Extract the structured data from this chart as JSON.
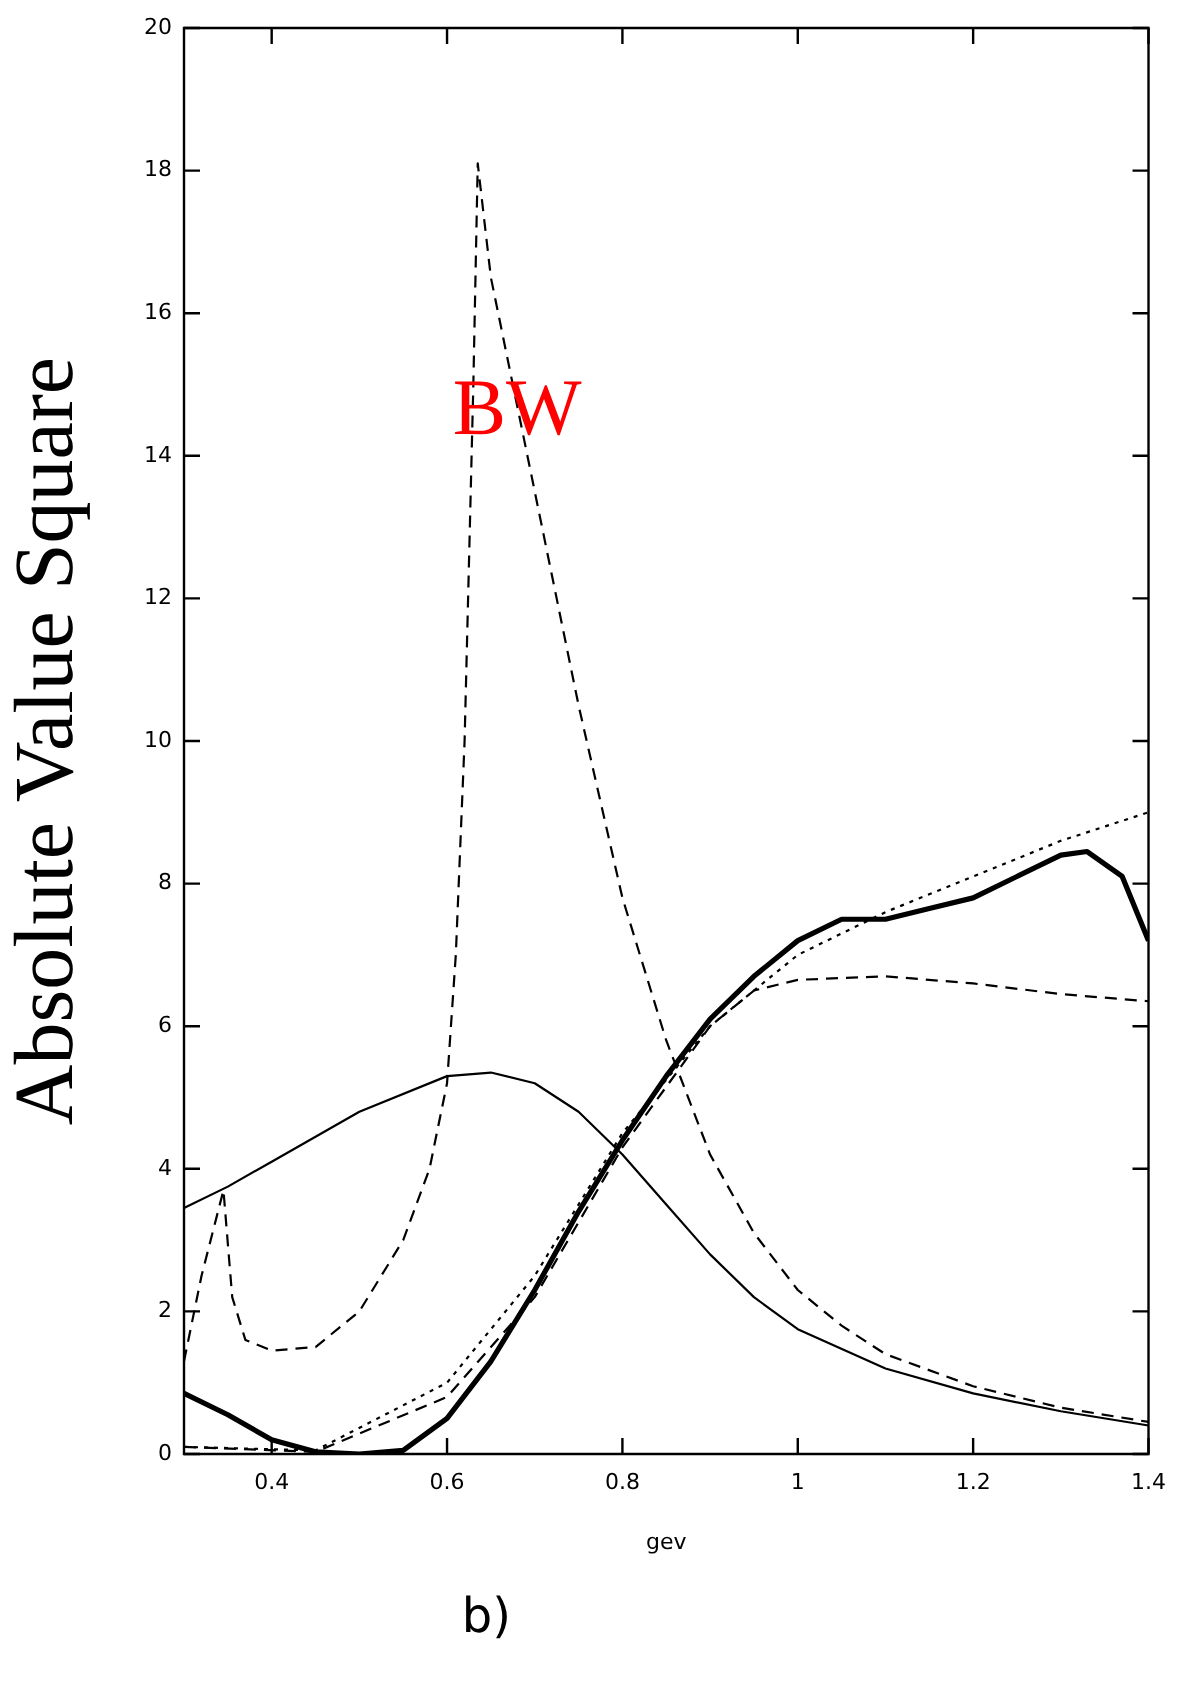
{
  "chart_data": {
    "type": "line",
    "xlabel": "gev",
    "ylabel": "Absolute Value Square",
    "xlim": [
      0.3,
      1.4
    ],
    "xticks": [
      0.4,
      0.6,
      0.8,
      1,
      1.2,
      1.4
    ],
    "ylim": [
      0,
      20
    ],
    "yticks": [
      0,
      2,
      4,
      6,
      8,
      10,
      12,
      14,
      16,
      18,
      20
    ],
    "grid": false,
    "legend": false,
    "marker": "none",
    "series": [
      {
        "color": "#000000",
        "line_style": "dashed",
        "x": [
          0.3,
          0.32,
          0.345,
          0.355,
          0.37,
          0.4,
          0.45,
          0.5,
          0.55,
          0.58,
          0.6,
          0.61,
          0.62,
          0.63,
          0.635,
          0.65,
          0.7,
          0.75,
          0.8,
          0.85,
          0.9,
          0.95,
          1.0,
          1.05,
          1.1,
          1.2,
          1.3,
          1.4
        ],
        "values": [
          1.3,
          2.5,
          3.7,
          2.2,
          1.6,
          1.45,
          1.5,
          2.0,
          3.0,
          4.0,
          5.2,
          7,
          10,
          15,
          18.1,
          16.5,
          13.5,
          10.5,
          7.8,
          5.8,
          4.2,
          3.1,
          2.3,
          1.8,
          1.4,
          0.95,
          0.65,
          0.45
        ]
      },
      {
        "color": "#000000",
        "line_style": "solid",
        "x": [
          0.3,
          0.35,
          0.4,
          0.5,
          0.6,
          0.65,
          0.7,
          0.75,
          0.8,
          0.85,
          0.9,
          0.95,
          1.0,
          1.1,
          1.2,
          1.3,
          1.4
        ],
        "values": [
          3.45,
          3.75,
          4.1,
          4.8,
          5.3,
          5.35,
          5.2,
          4.8,
          4.2,
          3.5,
          2.8,
          2.2,
          1.75,
          1.2,
          0.85,
          0.6,
          0.4
        ]
      },
      {
        "color": "#000000",
        "line_style": "dotted",
        "x": [
          0.3,
          0.45,
          0.6,
          0.7,
          0.8,
          0.9,
          1.0,
          1.1,
          1.2,
          1.3,
          1.4
        ],
        "values": [
          0.1,
          0.05,
          1.0,
          2.5,
          4.5,
          6.0,
          7.0,
          7.6,
          8.1,
          8.6,
          9.0
        ]
      },
      {
        "color": "#000000",
        "line_style": "dashed",
        "x": [
          0.3,
          0.45,
          0.6,
          0.7,
          0.8,
          0.9,
          0.95,
          1.0,
          1.1,
          1.2,
          1.3,
          1.4
        ],
        "values": [
          0.1,
          0.03,
          0.8,
          2.2,
          4.3,
          6.0,
          6.5,
          6.65,
          6.7,
          6.6,
          6.45,
          6.35
        ]
      },
      {
        "color": "#000000",
        "line_style": "solid",
        "x": [
          0.3,
          0.35,
          0.4,
          0.45,
          0.5,
          0.55,
          0.6,
          0.65,
          0.7,
          0.75,
          0.8,
          0.85,
          0.9,
          0.95,
          1.0,
          1.05,
          1.1,
          1.15,
          1.2,
          1.25,
          1.3,
          1.33,
          1.37,
          1.4
        ],
        "values": [
          0.85,
          0.55,
          0.2,
          0.03,
          0.0,
          0.05,
          0.5,
          1.3,
          2.3,
          3.4,
          4.4,
          5.3,
          6.1,
          6.7,
          7.2,
          7.5,
          7.5,
          7.65,
          7.8,
          8.1,
          8.4,
          8.45,
          8.1,
          7.2
        ]
      }
    ],
    "annotations": [
      {
        "text": "BW",
        "x": 0.68,
        "y": 14.6
      },
      "b)"
    ]
  }
}
